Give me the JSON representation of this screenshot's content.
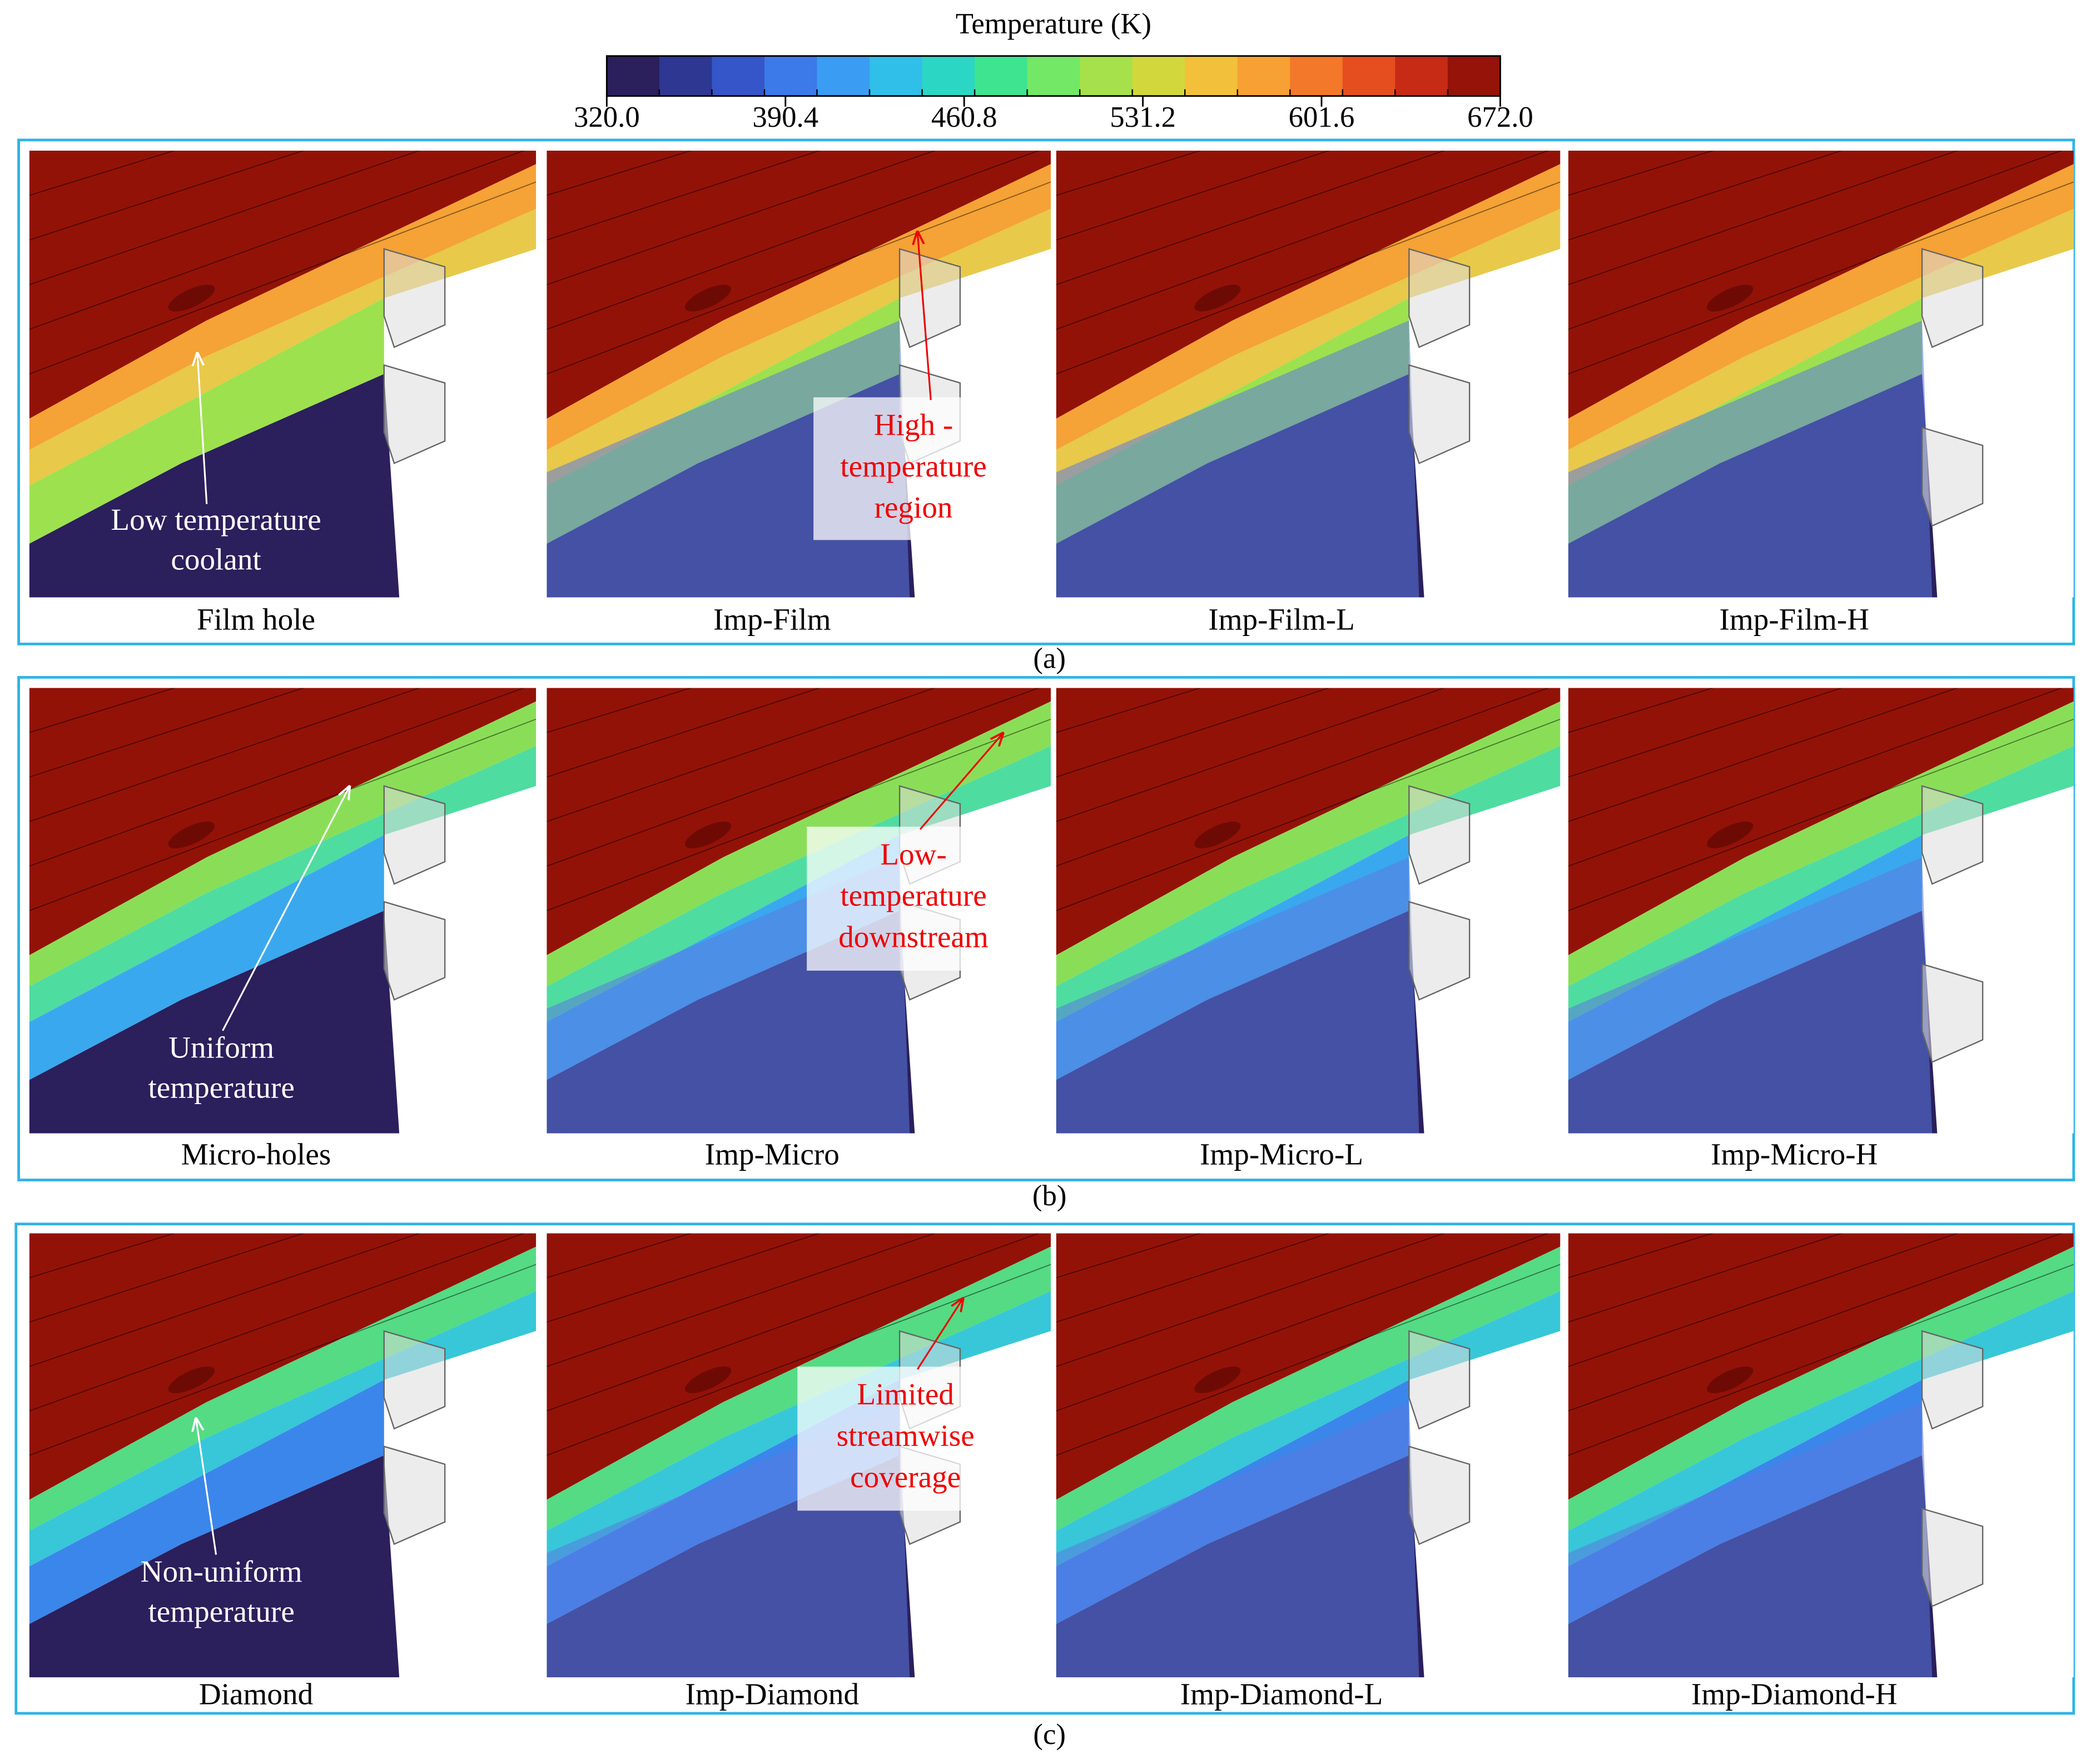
{
  "colorbar": {
    "title": "Temperature (K)",
    "ticks": [
      {
        "value": 320,
        "label": "320.0"
      },
      {
        "value": 390.4,
        "label": "390.4"
      },
      {
        "value": 460.8,
        "label": "460.8"
      },
      {
        "value": 531.2,
        "label": "531.2"
      },
      {
        "value": 601.6,
        "label": "601.6"
      },
      {
        "value": 672,
        "label": "672.0"
      }
    ],
    "colors": [
      "#2b1f5c",
      "#2e3791",
      "#3556c8",
      "#3b7ae8",
      "#3a9cf2",
      "#30bfe8",
      "#2bd6c4",
      "#3ee490",
      "#72e866",
      "#a6e04a",
      "#d2d83c",
      "#f2c03a",
      "#f7a033",
      "#f3782a",
      "#e54e1f",
      "#c72a15",
      "#951308"
    ]
  },
  "panels": [
    {
      "label": "(a)",
      "captions": [
        "Film hole",
        "Imp-Film",
        "Imp-Film-L",
        "Imp-Film-H"
      ],
      "note": [
        "Low temperature",
        "coolant"
      ],
      "callout": [
        "High -",
        "temperature",
        "region"
      ]
    },
    {
      "label": "(b)",
      "captions": [
        "Micro-holes",
        "Imp-Micro",
        "Imp-Micro-L",
        "Imp-Micro-H"
      ],
      "note": [
        "Uniform",
        "temperature"
      ],
      "callout": [
        "Low-",
        "temperature",
        "downstream"
      ]
    },
    {
      "label": "(c)",
      "captions": [
        "Diamond",
        "Imp-Diamond",
        "Imp-Diamond-L",
        "Imp-Diamond-H"
      ],
      "note": [
        "Non-uniform",
        "temperature"
      ],
      "callout": [
        "Limited",
        "streamwise",
        "coverage"
      ]
    }
  ]
}
